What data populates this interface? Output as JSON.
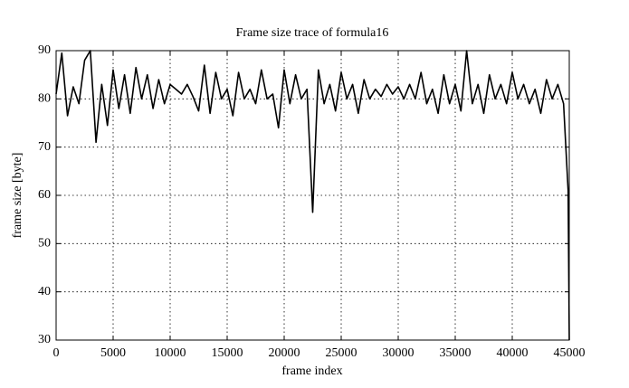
{
  "chart_data": {
    "type": "line",
    "title": "Frame size trace of formula16",
    "x_label": "frame index",
    "y_label": "frame size [byte]",
    "x": [
      0,
      500,
      1000,
      1500,
      2000,
      2500,
      3000,
      3500,
      4000,
      4500,
      5000,
      5500,
      6000,
      6500,
      7000,
      7500,
      8000,
      8500,
      9000,
      9500,
      10000,
      10500,
      11000,
      11500,
      12000,
      12500,
      13000,
      13500,
      14000,
      14500,
      15000,
      15500,
      16000,
      16500,
      17000,
      17500,
      18000,
      18500,
      19000,
      19500,
      20000,
      20500,
      21000,
      21500,
      22000,
      22500,
      23000,
      23500,
      24000,
      24500,
      25000,
      25500,
      26000,
      26500,
      27000,
      27500,
      28000,
      28500,
      29000,
      29500,
      30000,
      30500,
      31000,
      31500,
      32000,
      32500,
      33000,
      33500,
      34000,
      34500,
      35000,
      35500,
      36000,
      36500,
      37000,
      37500,
      38000,
      38500,
      39000,
      39500,
      40000,
      40500,
      41000,
      41500,
      42000,
      42500,
      43000,
      43500,
      44000,
      44500,
      44900,
      45000
    ],
    "series": [
      {
        "color": "#000000",
        "values": [
          81,
          89.5,
          76.5,
          82.5,
          79,
          88,
          90,
          71,
          83,
          74.5,
          86,
          78,
          85,
          77,
          86.5,
          80,
          85,
          78,
          84,
          79,
          83,
          82,
          81,
          83,
          80.5,
          77.5,
          87,
          77,
          85.5,
          80,
          82,
          76.5,
          85.5,
          80,
          82,
          79,
          86,
          80,
          81,
          74,
          86,
          79,
          85,
          80,
          82,
          56.5,
          86,
          79,
          83,
          77.5,
          85.5,
          80,
          83,
          77,
          84,
          80,
          82,
          80.5,
          83,
          81,
          82.5,
          80,
          83,
          80,
          85.5,
          79,
          82,
          77,
          85,
          79,
          83,
          77.5,
          90,
          79,
          83,
          77,
          85,
          80,
          83,
          79,
          85.5,
          80,
          83,
          79,
          82,
          77,
          84,
          80,
          83,
          79,
          61,
          30
        ]
      }
    ],
    "xlim": [
      0,
      45000
    ],
    "ylim": [
      30,
      90
    ],
    "xticks": [
      0,
      5000,
      10000,
      15000,
      20000,
      25000,
      30000,
      35000,
      40000,
      45000
    ],
    "yticks": [
      30,
      40,
      50,
      60,
      70,
      80,
      90
    ],
    "grid": true
  }
}
